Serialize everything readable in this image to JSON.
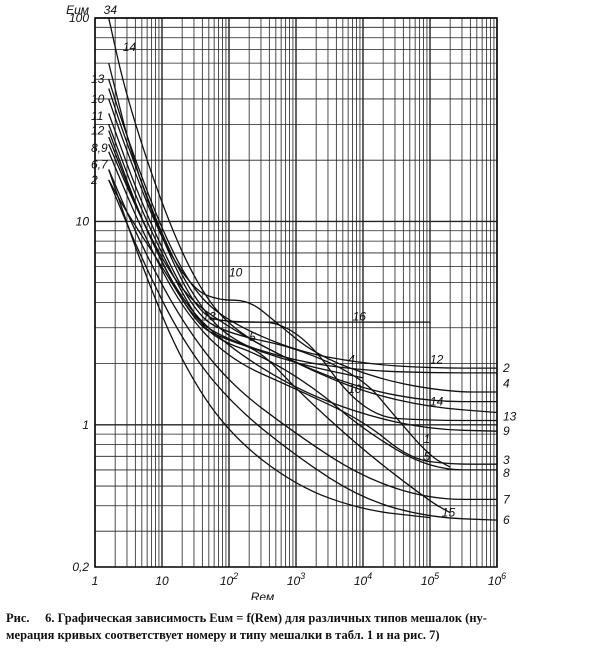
{
  "chart_data": {
    "type": "line",
    "x_scale": "log",
    "y_scale": "log",
    "xlim": [
      1,
      1000000
    ],
    "ylim": [
      0.2,
      100
    ],
    "xlabel": "Reм",
    "ylabel": "Euм",
    "ylabel_extra": "34",
    "x_ticks": [
      {
        "value": 1,
        "label": "1"
      },
      {
        "value": 10,
        "label": "10"
      },
      {
        "value": 100,
        "label": "10^2"
      },
      {
        "value": 1000,
        "label": "10^3"
      },
      {
        "value": 10000,
        "label": "10^4"
      },
      {
        "value": 100000,
        "label": "10^5"
      },
      {
        "value": 1000000,
        "label": "10^6"
      }
    ],
    "y_ticks": [
      {
        "value": 100,
        "label": "100"
      },
      {
        "value": 10,
        "label": "10"
      },
      {
        "value": 1,
        "label": "1"
      },
      {
        "value": 0.2,
        "label": "0,2"
      }
    ],
    "grid": true,
    "series": [
      {
        "name": "14",
        "points": [
          [
            1.6,
            100
          ],
          [
            3,
            40
          ],
          [
            10,
            12
          ],
          [
            30,
            5.2
          ],
          [
            100,
            3.0
          ],
          [
            1000,
            2.0
          ],
          [
            10000,
            1.5
          ],
          [
            100000,
            1.3
          ],
          [
            1000000,
            1.3
          ]
        ]
      },
      {
        "name": "12",
        "points": [
          [
            1.6,
            50
          ],
          [
            3,
            26
          ],
          [
            10,
            9
          ],
          [
            30,
            4.5
          ],
          [
            100,
            3.2
          ],
          [
            1000,
            2.3
          ],
          [
            10000,
            2.0
          ],
          [
            100000,
            1.9
          ],
          [
            1000000,
            1.9
          ]
        ]
      },
      {
        "name": "10",
        "points": [
          [
            1.6,
            40
          ],
          [
            3,
            22
          ],
          [
            10,
            8
          ],
          [
            30,
            4.6
          ],
          [
            70,
            4.1
          ],
          [
            200,
            4.1
          ],
          [
            500,
            3.2
          ],
          [
            2000,
            2.2
          ],
          [
            20000,
            1.65
          ],
          [
            200000,
            1.45
          ],
          [
            1000000,
            1.45
          ]
        ]
      },
      {
        "name": "2",
        "points": [
          [
            1.6,
            16
          ],
          [
            3,
            11
          ],
          [
            10,
            6
          ],
          [
            30,
            3.3
          ],
          [
            100,
            2.6
          ],
          [
            1000,
            2.05
          ],
          [
            10000,
            1.85
          ],
          [
            100000,
            1.8
          ],
          [
            1000000,
            1.8
          ]
        ]
      },
      {
        "name": "4",
        "points": [
          [
            1.6,
            24
          ],
          [
            5,
            10
          ],
          [
            20,
            4.4
          ],
          [
            100,
            3.0
          ],
          [
            1000,
            2.0
          ],
          [
            10000,
            1.45
          ],
          [
            100000,
            1.22
          ],
          [
            1000000,
            1.15
          ]
        ]
      },
      {
        "name": "13",
        "points": [
          [
            1.6,
            60
          ],
          [
            4,
            18
          ],
          [
            15,
            6
          ],
          [
            40,
            3.4
          ],
          [
            100,
            3.2
          ],
          [
            1000,
            3.2
          ],
          [
            10000,
            1.1
          ],
          [
            100000,
            1.05
          ],
          [
            1000000,
            1.05
          ]
        ]
      },
      {
        "name": "9",
        "points": [
          [
            1.6,
            28
          ],
          [
            5,
            10
          ],
          [
            20,
            4
          ],
          [
            100,
            2.4
          ],
          [
            1000,
            1.5
          ],
          [
            10000,
            1.12
          ],
          [
            100000,
            0.95
          ],
          [
            1000000,
            0.93
          ]
        ]
      },
      {
        "name": "3",
        "points": [
          [
            1.6,
            22
          ],
          [
            5,
            9
          ],
          [
            20,
            3.7
          ],
          [
            100,
            2.1
          ],
          [
            1000,
            1.5
          ],
          [
            10000,
            1.05
          ],
          [
            50000,
            0.68
          ],
          [
            200000,
            0.64
          ],
          [
            1000000,
            0.64
          ]
        ]
      },
      {
        "name": "8",
        "points": [
          [
            1.6,
            30
          ],
          [
            5,
            11
          ],
          [
            30,
            3.4
          ],
          [
            70,
            2.6
          ],
          [
            300,
            2.2
          ],
          [
            2000,
            1.5
          ],
          [
            10000,
            0.95
          ],
          [
            100000,
            0.6
          ],
          [
            1000000,
            0.6
          ]
        ]
      },
      {
        "name": "7",
        "points": [
          [
            1.6,
            18
          ],
          [
            5,
            7.5
          ],
          [
            20,
            3.2
          ],
          [
            100,
            1.6
          ],
          [
            1000,
            0.9
          ],
          [
            10000,
            0.55
          ],
          [
            100000,
            0.43
          ],
          [
            1000000,
            0.43
          ]
        ]
      },
      {
        "name": "6",
        "points": [
          [
            1.6,
            16
          ],
          [
            5,
            6.5
          ],
          [
            20,
            2.6
          ],
          [
            100,
            1.3
          ],
          [
            1000,
            0.7
          ],
          [
            10000,
            0.43
          ],
          [
            100000,
            0.35
          ],
          [
            1000000,
            0.34
          ]
        ]
      },
      {
        "name": "15",
        "points": [
          [
            1.6,
            18
          ],
          [
            5,
            6
          ],
          [
            20,
            2.0
          ],
          [
            100,
            0.9
          ],
          [
            1000,
            0.5
          ],
          [
            10000,
            0.38
          ],
          [
            100000,
            0.35
          ]
        ]
      },
      {
        "name": "5",
        "points": [
          [
            1.6,
            26
          ],
          [
            5,
            10
          ],
          [
            30,
            3.1
          ],
          [
            100,
            2.6
          ],
          [
            300,
            2.3
          ],
          [
            1000,
            1.5
          ],
          [
            10000,
            0.75
          ],
          [
            100000,
            0.42
          ],
          [
            200000,
            0.37
          ]
        ]
      },
      {
        "name": "1",
        "points": [
          [
            1.6,
            34
          ],
          [
            5,
            12
          ],
          [
            30,
            3.5
          ],
          [
            100,
            2.8
          ],
          [
            1000,
            2.4
          ],
          [
            10000,
            1.7
          ],
          [
            30000,
            1.1
          ],
          [
            100000,
            0.7
          ],
          [
            200000,
            0.62
          ]
        ]
      },
      {
        "name": "16",
        "points": [
          [
            100,
            3.2
          ],
          [
            1000,
            3.2
          ],
          [
            100000,
            3.2
          ]
        ]
      },
      {
        "name": "11",
        "points": [
          [
            1.6,
            45
          ],
          [
            3,
            24
          ],
          [
            10,
            8.5
          ],
          [
            30,
            4.2
          ],
          [
            100,
            2.6
          ],
          [
            1000,
            2.0
          ],
          [
            10000,
            1.7
          ]
        ]
      }
    ],
    "curve_labels": [
      {
        "text": "14",
        "x": 2.6,
        "y": 72
      },
      {
        "text": "13",
        "x": 1.6,
        "y": 50
      },
      {
        "text": "10",
        "x": 1.6,
        "y": 40
      },
      {
        "text": "11",
        "x": 1.6,
        "y": 33
      },
      {
        "text": "12",
        "x": 1.6,
        "y": 28
      },
      {
        "text": "8,9",
        "x": 1.6,
        "y": 23
      },
      {
        "text": "6,7",
        "x": 1.6,
        "y": 19
      },
      {
        "text": "2",
        "x": 1.6,
        "y": 16
      },
      {
        "text": "10",
        "x": 100,
        "y": 5.6
      },
      {
        "text": "16",
        "x": 7000,
        "y": 3.4
      },
      {
        "text": "13",
        "x": 40,
        "y": 3.4
      },
      {
        "text": "5",
        "x": 200,
        "y": 2.7
      },
      {
        "text": "4",
        "x": 6000,
        "y": 2.1
      },
      {
        "text": "12",
        "x": 100000,
        "y": 2.1
      },
      {
        "text": "10",
        "x": 6000,
        "y": 1.5
      },
      {
        "text": "14",
        "x": 100000,
        "y": 1.3
      },
      {
        "text": "1",
        "x": 80000,
        "y": 0.85
      },
      {
        "text": "5",
        "x": 80000,
        "y": 0.7
      },
      {
        "text": "15",
        "x": 150000,
        "y": 0.37
      },
      {
        "text": "2",
        "x": 1000000,
        "y": 1.9
      },
      {
        "text": "4",
        "x": 1000000,
        "y": 1.6
      },
      {
        "text": "13",
        "x": 1000000,
        "y": 1.1
      },
      {
        "text": "9",
        "x": 1000000,
        "y": 0.93
      },
      {
        "text": "3",
        "x": 1000000,
        "y": 0.67
      },
      {
        "text": "8",
        "x": 1000000,
        "y": 0.58
      },
      {
        "text": "7",
        "x": 1000000,
        "y": 0.43
      },
      {
        "text": "6",
        "x": 1000000,
        "y": 0.34
      }
    ]
  },
  "caption": {
    "prefix": "Рис.",
    "line1": "6. Графическая зависимость Euм = f(Reм) для различных типов мешалок (ну-",
    "line2": "мерация кривых соответствует номеру и типу мешалки в табл.     1 и на рис.     7)"
  }
}
